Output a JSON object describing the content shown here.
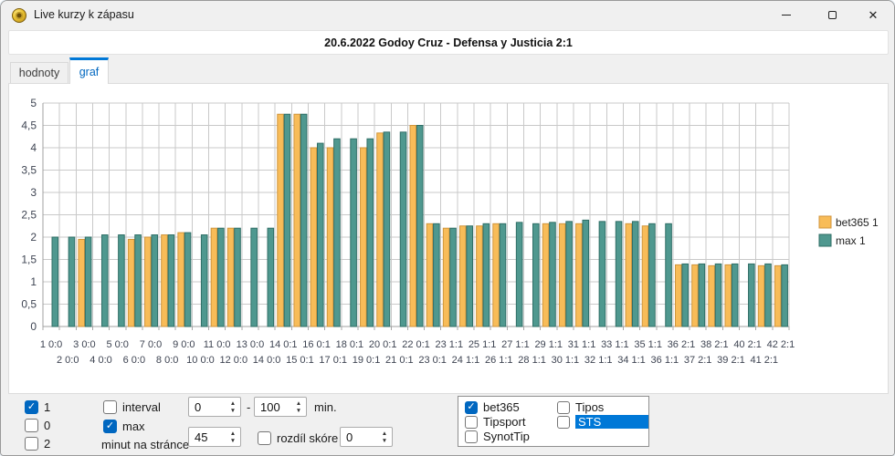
{
  "window": {
    "title": "Live kurzy k zápasu"
  },
  "header": {
    "match": "20.6.2022 Godoy Cruz - Defensa y Justicia  2:1"
  },
  "tabs": [
    {
      "label": "hodnoty",
      "active": false
    },
    {
      "label": "graf",
      "active": true
    }
  ],
  "chart_data": {
    "type": "bar",
    "title": "",
    "categories": [
      "1 0:0",
      "2 0:0",
      "3 0:0",
      "4 0:0",
      "5 0:0",
      "6 0:0",
      "7 0:0",
      "8 0:0",
      "9 0:0",
      "10 0:0",
      "11 0:0",
      "12 0:0",
      "13 0:0",
      "14 0:0",
      "14 0:1",
      "15 0:1",
      "16 0:1",
      "17 0:1",
      "18 0:1",
      "19 0:1",
      "20 0:1",
      "21 0:1",
      "22 0:1",
      "23 0:1",
      "23 1:1",
      "24 1:1",
      "25 1:1",
      "26 1:1",
      "27 1:1",
      "28 1:1",
      "29 1:1",
      "30 1:1",
      "31 1:1",
      "32 1:1",
      "33 1:1",
      "34 1:1",
      "35 1:1",
      "36 1:1",
      "36 2:1",
      "37 2:1",
      "38 2:1",
      "39 2:1",
      "40 2:1",
      "41 2:1",
      "42 2:1"
    ],
    "series": [
      {
        "name": "bet365 1",
        "color": "#F8BC58",
        "border": "#D0953C",
        "values": [
          null,
          null,
          1.95,
          null,
          null,
          1.95,
          2,
          2.05,
          2.1,
          null,
          2.2,
          2.2,
          null,
          null,
          4.75,
          4.75,
          4,
          4,
          null,
          4,
          4.33,
          null,
          4.5,
          2.3,
          2.2,
          2.25,
          2.25,
          2.3,
          null,
          null,
          2.3,
          2.3,
          2.3,
          null,
          null,
          2.3,
          2.25,
          null,
          1.38,
          1.38,
          1.36,
          1.38,
          null,
          1.36,
          1.36
        ]
      },
      {
        "name": "max 1",
        "color": "#4F988F",
        "border": "#2F6E66",
        "values": [
          2,
          2,
          2,
          2.05,
          2.05,
          2.05,
          2.05,
          2.05,
          2.1,
          2.05,
          2.2,
          2.2,
          2.2,
          2.2,
          4.75,
          4.75,
          4.1,
          4.2,
          4.2,
          4.2,
          4.35,
          4.35,
          4.5,
          2.3,
          2.2,
          2.25,
          2.3,
          2.3,
          2.33,
          2.3,
          2.33,
          2.35,
          2.38,
          2.35,
          2.35,
          2.35,
          2.3,
          2.3,
          1.4,
          1.4,
          1.4,
          1.4,
          1.4,
          1.4,
          1.38
        ]
      }
    ],
    "ylim": [
      0,
      5
    ],
    "ytick_step": 0.5,
    "ytick_labels": [
      "0",
      "0,5",
      "1",
      "1,5",
      "2",
      "2,5",
      "3",
      "3,5",
      "4",
      "4,5",
      "5"
    ],
    "grid": true,
    "legend_position": "right",
    "xlabel": "",
    "ylabel": ""
  },
  "controls": {
    "outcome_checkboxes": [
      {
        "label": "1",
        "checked": true
      },
      {
        "label": "0",
        "checked": false
      },
      {
        "label": "2",
        "checked": false
      }
    ],
    "interval": {
      "label": "interval",
      "checked": false
    },
    "max": {
      "label": "max",
      "checked": true
    },
    "minutes_per_page": {
      "label": "minut na stránce",
      "value": "45"
    },
    "interval_from": "0",
    "interval_dash": "-",
    "interval_to": "100",
    "interval_unit": "min.",
    "score_diff": {
      "label": "rozdíl skóre",
      "checked": false,
      "value": "0"
    },
    "bookmakers": [
      {
        "label": "bet365",
        "checked": true,
        "selected": false
      },
      {
        "label": "Tipsport",
        "checked": false,
        "selected": false
      },
      {
        "label": "SynotTip",
        "checked": false,
        "selected": false
      },
      {
        "label": "Tipos",
        "checked": false,
        "selected": false
      },
      {
        "label": "STS",
        "checked": false,
        "selected": true
      }
    ]
  }
}
